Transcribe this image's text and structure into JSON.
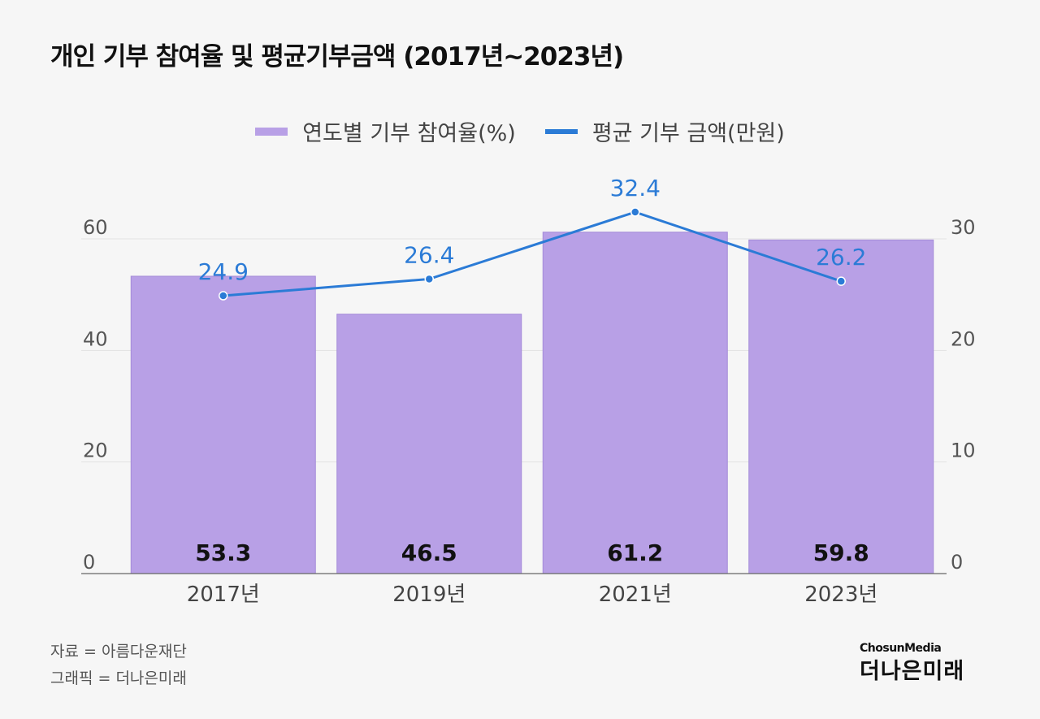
{
  "title": "개인 기부 참여율 및 평균기부금액 (2017년~2023년)",
  "legend": {
    "bar": "연도별 기부 참여율(%)",
    "line": "평균 기부 금액(만원)"
  },
  "colors": {
    "bar": "#b8a0e6",
    "line": "#2b7bd6",
    "background": "#f6f6f6",
    "grid": "#e2e2e2"
  },
  "chart_data": {
    "type": "bar",
    "categories": [
      "2017년",
      "2019년",
      "2021년",
      "2023년"
    ],
    "series": [
      {
        "name": "연도별 기부 참여율(%)",
        "type": "bar",
        "axis": "left",
        "values": [
          53.3,
          46.5,
          61.2,
          59.8
        ]
      },
      {
        "name": "평균 기부 금액(만원)",
        "type": "line",
        "axis": "right",
        "values": [
          24.9,
          26.4,
          32.4,
          26.2
        ]
      }
    ],
    "y_left": {
      "ticks": [
        0,
        20,
        40,
        60
      ],
      "range": [
        0,
        60
      ]
    },
    "y_right": {
      "ticks": [
        0,
        10,
        20,
        30
      ],
      "range": [
        0,
        30
      ]
    },
    "grid": true,
    "legend_position": "top-center"
  },
  "footer": {
    "source": "자료 = 아름다운재단",
    "graphic": "그래픽 = 더나은미래"
  },
  "logo": {
    "top": "ChosunMedia",
    "bottom": "더나은미래"
  }
}
